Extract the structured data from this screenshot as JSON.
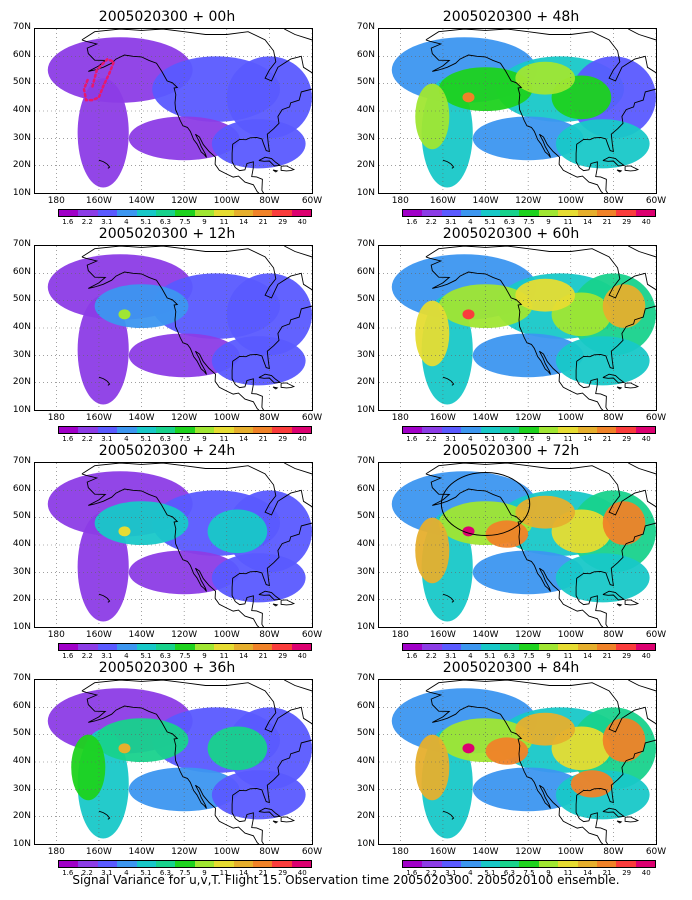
{
  "panels": [
    {
      "title": "2005020300 + 00h",
      "level": 0,
      "col": 0,
      "row": 0
    },
    {
      "title": "2005020300 + 48h",
      "level": 4,
      "col": 1,
      "row": 0
    },
    {
      "title": "2005020300 + 12h",
      "level": 1,
      "col": 0,
      "row": 1
    },
    {
      "title": "2005020300 + 60h",
      "level": 5,
      "col": 1,
      "row": 1
    },
    {
      "title": "2005020300 + 24h",
      "level": 2,
      "col": 0,
      "row": 2
    },
    {
      "title": "2005020300 + 72h",
      "level": 6,
      "col": 1,
      "row": 2
    },
    {
      "title": "2005020300 + 36h",
      "level": 3,
      "col": 0,
      "row": 3
    },
    {
      "title": "2005020300 + 84h",
      "level": 7,
      "col": 1,
      "row": 3
    }
  ],
  "lat_labels": [
    "70N",
    "60N",
    "50N",
    "40N",
    "30N",
    "20N",
    "10N"
  ],
  "lon_labels": [
    "180",
    "160W",
    "140W",
    "120W",
    "100W",
    "80W",
    "60W"
  ],
  "colorbar": {
    "labels": [
      "1.6",
      "2.2",
      "3.1",
      "4",
      "5.1",
      "6.3",
      "7.5",
      "9",
      "11",
      "14",
      "21",
      "29",
      "40"
    ],
    "colors": [
      "#a000c8",
      "#8c3ce6",
      "#5a5aff",
      "#3c96f0",
      "#18c8c8",
      "#18d28c",
      "#1ed21e",
      "#a0e632",
      "#e6dc32",
      "#e6af2d",
      "#f08228",
      "#fa3c3c",
      "#dc0070"
    ]
  },
  "caption": "Signal Variance for u,v,T. Flight 15. Observation time 2005020300. 2005020100 ensemble."
}
